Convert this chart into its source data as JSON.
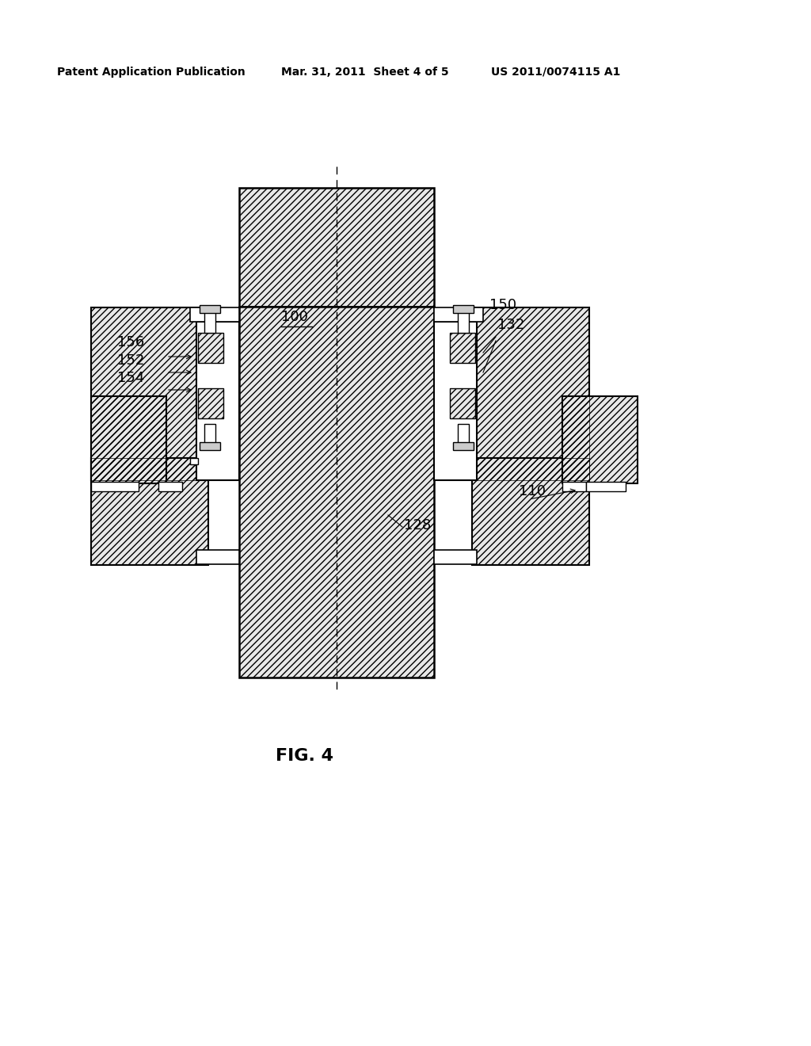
{
  "header_left": "Patent Application Publication",
  "header_mid": "Mar. 31, 2011  Sheet 4 of 5",
  "header_right": "US 2011/0074115 A1",
  "fig_label": "FIG. 4",
  "bg_color": "#ffffff",
  "hatch_fill": "#e8e8e8",
  "line_color": "#000000"
}
